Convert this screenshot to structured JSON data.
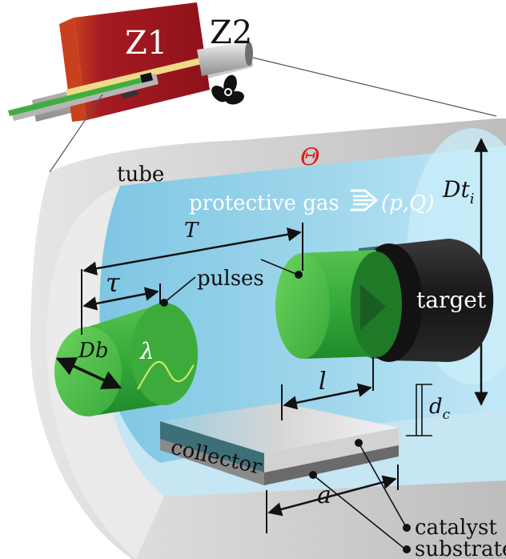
{
  "labels": {
    "z1": "Z1",
    "z2": "Z2",
    "theta": "Θ",
    "tube": "tube",
    "protective_gas": "protective gas",
    "pq": "(p,Q)",
    "dti_main": "Dt",
    "dti_sub": "i",
    "T": "T",
    "pulses": "pulses",
    "tau": "τ",
    "Db": "Db",
    "lambda": "λ",
    "target": "target",
    "l": "l",
    "dc_main": "d",
    "dc_sub": "c",
    "collector": "collector",
    "a": "a",
    "catalyst": "catalyst",
    "substrate": "substrate"
  },
  "colors": {
    "furnace_red": "#a01822",
    "tube_gray": "#d2d2d2",
    "gas_blue": "#a7dcef",
    "pulse_green": "#3fae3f",
    "target_black": "#1c1c1c",
    "theta_red": "#d62020"
  },
  "icons": {
    "fan": "fan-icon",
    "gas_flow": "gas-flow-arrow-icon"
  }
}
